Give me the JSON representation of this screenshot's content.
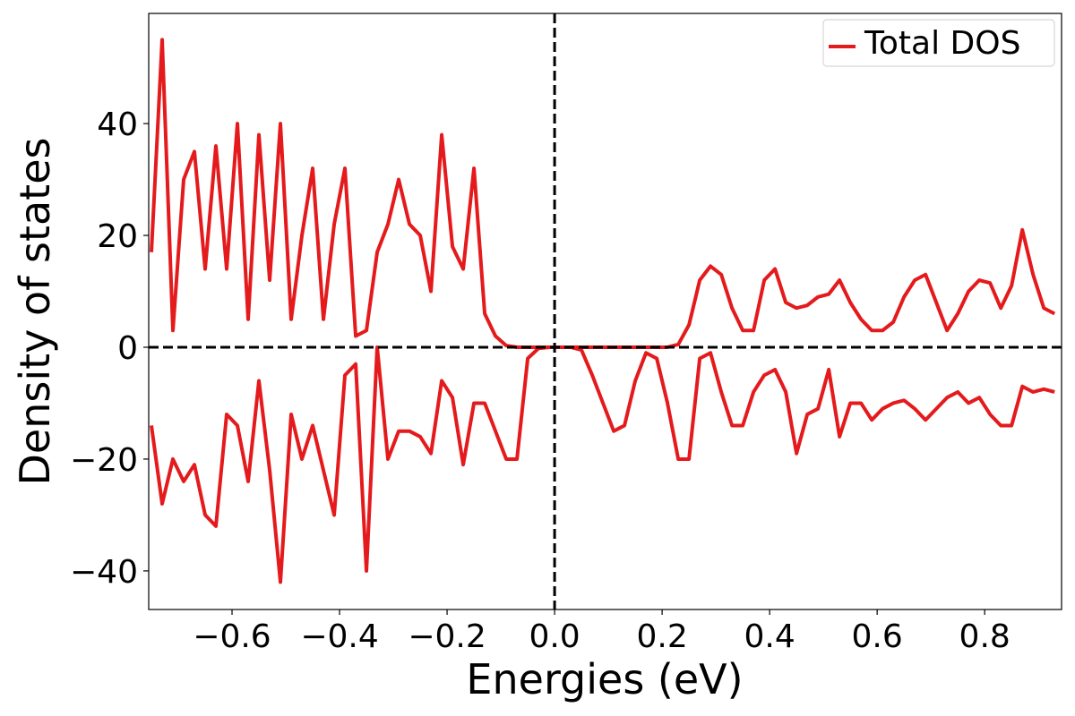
{
  "chart_data": {
    "type": "line",
    "xlabel": "Energies (eV)",
    "ylabel": "Density of states",
    "x": [
      -0.75,
      -0.73,
      -0.71,
      -0.69,
      -0.67,
      -0.65,
      -0.63,
      -0.61,
      -0.59,
      -0.57,
      -0.55,
      -0.53,
      -0.51,
      -0.49,
      -0.47,
      -0.45,
      -0.43,
      -0.41,
      -0.39,
      -0.37,
      -0.35,
      -0.33,
      -0.31,
      -0.29,
      -0.27,
      -0.25,
      -0.23,
      -0.21,
      -0.19,
      -0.17,
      -0.15,
      -0.13,
      -0.11,
      -0.09,
      -0.07,
      -0.05,
      -0.03,
      -0.01,
      0.01,
      0.03,
      0.05,
      0.07,
      0.09,
      0.11,
      0.13,
      0.15,
      0.17,
      0.19,
      0.21,
      0.23,
      0.25,
      0.27,
      0.29,
      0.31,
      0.33,
      0.35,
      0.37,
      0.39,
      0.41,
      0.43,
      0.45,
      0.47,
      0.49,
      0.51,
      0.53,
      0.55,
      0.57,
      0.59,
      0.61,
      0.63,
      0.65,
      0.67,
      0.69,
      0.71,
      0.73,
      0.75,
      0.77,
      0.79,
      0.81,
      0.83,
      0.85,
      0.87,
      0.89,
      0.91,
      0.93
    ],
    "series": [
      {
        "name": "Total DOS",
        "color": "#e41a1c",
        "values": [
          17,
          55,
          3,
          30,
          35,
          14,
          36,
          14,
          40,
          5,
          38,
          12,
          40,
          5,
          20,
          32,
          5,
          22,
          32,
          2,
          3,
          17,
          22,
          30,
          22,
          20,
          10,
          38,
          18,
          14,
          32,
          6,
          2,
          0.3,
          0,
          0,
          0,
          0,
          0,
          0,
          0,
          0,
          0,
          0,
          0,
          0,
          0,
          0,
          0,
          0.5,
          4,
          12,
          14.5,
          13,
          7,
          3,
          3,
          12,
          14,
          8,
          7,
          7.5,
          9,
          9.5,
          12,
          8,
          5,
          3,
          3,
          4.5,
          9,
          12,
          13,
          8,
          3,
          6,
          10,
          12,
          11.5,
          7,
          11,
          21,
          13,
          7,
          6
        ]
      },
      {
        "color": "#e41a1c",
        "values": [
          -14,
          -28,
          -20,
          -24,
          -21,
          -30,
          -32,
          -12,
          -14,
          -24,
          -6,
          -22,
          -42,
          -12,
          -20,
          -14,
          -22,
          -30,
          -5,
          -3,
          -40,
          0,
          -20,
          -15,
          -15,
          -16,
          -19,
          -6,
          -9,
          -21,
          -10,
          -10,
          -15,
          -20,
          -20,
          -2,
          -0.2,
          0,
          0,
          0,
          -0.5,
          -5,
          -10,
          -15,
          -14,
          -6,
          -1,
          -2,
          -10,
          -20,
          -20,
          -2,
          -1,
          -8,
          -14,
          -14,
          -8,
          -5,
          -4,
          -8,
          -19,
          -12,
          -11,
          -4,
          -16,
          -10,
          -10,
          -13,
          -11,
          -10,
          -9.5,
          -11,
          -13,
          -11,
          -9,
          -8,
          -10,
          -9,
          -12,
          -14,
          -14,
          -7,
          -8,
          -7.5,
          -8
        ]
      }
    ],
    "xlim": [
      -0.755,
      0.943
    ],
    "ylim": [
      -46.9,
      59.7
    ],
    "xticks": [
      {
        "value": -0.6,
        "label": "−0.6"
      },
      {
        "value": -0.4,
        "label": "−0.4"
      },
      {
        "value": -0.2,
        "label": "−0.2"
      },
      {
        "value": 0,
        "label": "0.0"
      },
      0.2,
      0.4,
      0.6,
      0.8
    ],
    "yticks": [
      {
        "value": -40,
        "label": "−40"
      },
      {
        "value": -20,
        "label": "−20"
      },
      0,
      20,
      40
    ],
    "axvline": 0,
    "axhline": 0,
    "legend": "upper right",
    "grid": false
  }
}
